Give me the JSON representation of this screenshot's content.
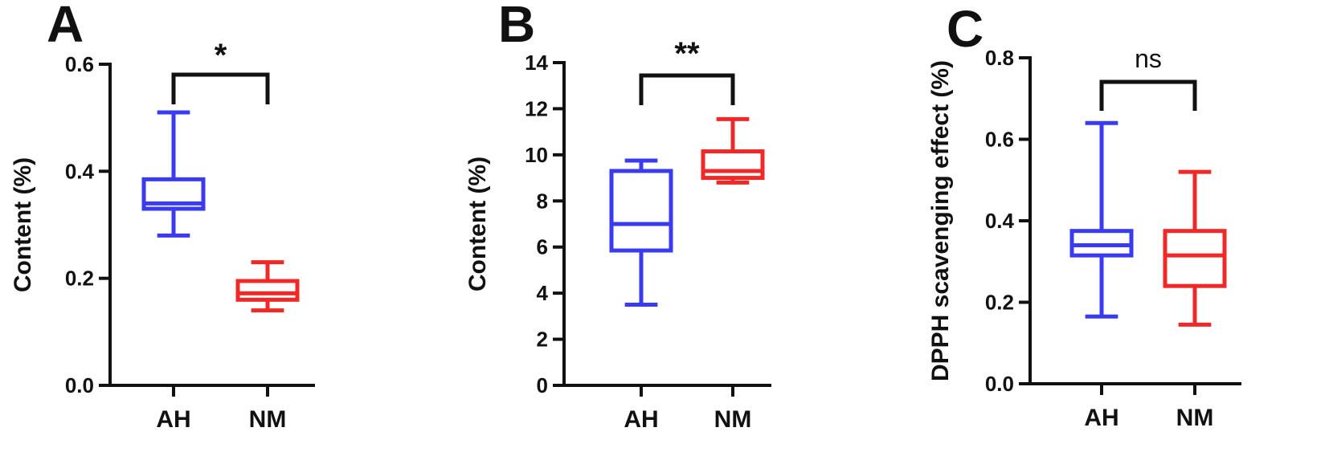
{
  "chart_data": [
    {
      "panel": "A",
      "type": "box",
      "ylabel": "Content (%)",
      "ylim": [
        0,
        0.6
      ],
      "yticks": [
        "0.0",
        "0.2",
        "0.4",
        "0.6"
      ],
      "categories": [
        "AH",
        "NM"
      ],
      "boxes": [
        {
          "category": "AH",
          "min": 0.28,
          "q1": 0.33,
          "median": 0.34,
          "q3": 0.385,
          "max": 0.51,
          "color": "#3a3af0"
        },
        {
          "category": "NM",
          "min": 0.14,
          "q1": 0.16,
          "median": 0.172,
          "q3": 0.195,
          "max": 0.23,
          "color": "#f02828"
        }
      ],
      "significance": "*"
    },
    {
      "panel": "B",
      "type": "box",
      "ylabel": "Content (%)",
      "ylim": [
        0,
        14
      ],
      "yticks": [
        "0",
        "2",
        "4",
        "6",
        "8",
        "10",
        "12",
        "14"
      ],
      "categories": [
        "AH",
        "NM"
      ],
      "boxes": [
        {
          "category": "AH",
          "min": 3.5,
          "q1": 5.85,
          "median": 7.0,
          "q3": 9.3,
          "max": 9.75,
          "color": "#3a3af0"
        },
        {
          "category": "NM",
          "min": 8.8,
          "q1": 9.0,
          "median": 9.3,
          "q3": 10.15,
          "max": 11.55,
          "color": "#f02828"
        }
      ],
      "significance": "**"
    },
    {
      "panel": "C",
      "type": "box",
      "ylabel": "DPPH scavenging effect (%)",
      "ylim": [
        0,
        0.8
      ],
      "yticks": [
        "0.0",
        "0.2",
        "0.4",
        "0.6",
        "0.8"
      ],
      "categories": [
        "AH",
        "NM"
      ],
      "boxes": [
        {
          "category": "AH",
          "min": 0.165,
          "q1": 0.315,
          "median": 0.34,
          "q3": 0.375,
          "max": 0.64,
          "color": "#3a3af0"
        },
        {
          "category": "NM",
          "min": 0.145,
          "q1": 0.24,
          "median": 0.315,
          "q3": 0.375,
          "max": 0.52,
          "color": "#f02828"
        }
      ],
      "significance": "ns"
    }
  ]
}
